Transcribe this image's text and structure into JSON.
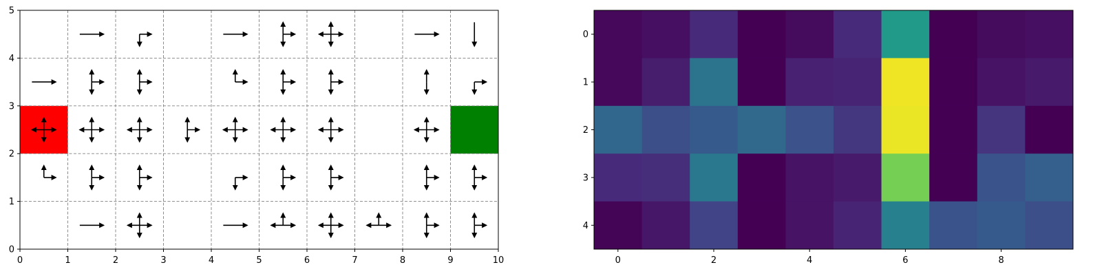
{
  "chart_data": [
    {
      "type": "quiver-grid",
      "xlim": [
        0,
        10
      ],
      "ylim": [
        0,
        5
      ],
      "x_ticks": [
        "0",
        "1",
        "2",
        "3",
        "4",
        "5",
        "6",
        "7",
        "8",
        "9",
        "10"
      ],
      "y_ticks": [
        "0",
        "1",
        "2",
        "3",
        "4",
        "5"
      ],
      "grid": "dashed",
      "highlighted_cells": [
        {
          "col": 0,
          "row": 2,
          "color": "#ff0000"
        },
        {
          "col": 9,
          "row": 2,
          "color": "#008000"
        }
      ],
      "arrow_directions_per_cell": [
        {
          "col": 1,
          "row": 4,
          "dirs": [
            "right"
          ]
        },
        {
          "col": 2,
          "row": 4,
          "dirs": [
            "right",
            "down"
          ]
        },
        {
          "col": 4,
          "row": 4,
          "dirs": [
            "right"
          ]
        },
        {
          "col": 5,
          "row": 4,
          "dirs": [
            "right",
            "up",
            "down"
          ]
        },
        {
          "col": 6,
          "row": 4,
          "dirs": [
            "right",
            "left",
            "up",
            "down"
          ]
        },
        {
          "col": 8,
          "row": 4,
          "dirs": [
            "right"
          ]
        },
        {
          "col": 9,
          "row": 4,
          "dirs": [
            "down"
          ]
        },
        {
          "col": 0,
          "row": 3,
          "dirs": [
            "right"
          ]
        },
        {
          "col": 1,
          "row": 3,
          "dirs": [
            "right",
            "up",
            "down"
          ]
        },
        {
          "col": 2,
          "row": 3,
          "dirs": [
            "right",
            "up",
            "down"
          ]
        },
        {
          "col": 4,
          "row": 3,
          "dirs": [
            "right",
            "up"
          ]
        },
        {
          "col": 5,
          "row": 3,
          "dirs": [
            "right",
            "up",
            "down"
          ]
        },
        {
          "col": 6,
          "row": 3,
          "dirs": [
            "right",
            "up",
            "down"
          ]
        },
        {
          "col": 8,
          "row": 3,
          "dirs": [
            "up",
            "down"
          ]
        },
        {
          "col": 9,
          "row": 3,
          "dirs": [
            "right",
            "down"
          ]
        },
        {
          "col": 0,
          "row": 2,
          "dirs": [
            "right",
            "left",
            "up",
            "down"
          ]
        },
        {
          "col": 1,
          "row": 2,
          "dirs": [
            "right",
            "left",
            "up",
            "down"
          ]
        },
        {
          "col": 2,
          "row": 2,
          "dirs": [
            "right",
            "left",
            "up",
            "down"
          ]
        },
        {
          "col": 3,
          "row": 2,
          "dirs": [
            "right",
            "up",
            "down"
          ]
        },
        {
          "col": 4,
          "row": 2,
          "dirs": [
            "right",
            "left",
            "up",
            "down"
          ]
        },
        {
          "col": 5,
          "row": 2,
          "dirs": [
            "right",
            "left",
            "up",
            "down"
          ]
        },
        {
          "col": 6,
          "row": 2,
          "dirs": [
            "right",
            "left",
            "up",
            "down"
          ]
        },
        {
          "col": 8,
          "row": 2,
          "dirs": [
            "right",
            "left",
            "up",
            "down"
          ]
        },
        {
          "col": 0,
          "row": 1,
          "dirs": [
            "right",
            "up"
          ]
        },
        {
          "col": 1,
          "row": 1,
          "dirs": [
            "right",
            "up",
            "down"
          ]
        },
        {
          "col": 2,
          "row": 1,
          "dirs": [
            "right",
            "up",
            "down"
          ]
        },
        {
          "col": 4,
          "row": 1,
          "dirs": [
            "right",
            "down"
          ]
        },
        {
          "col": 5,
          "row": 1,
          "dirs": [
            "right",
            "up",
            "down"
          ]
        },
        {
          "col": 6,
          "row": 1,
          "dirs": [
            "right",
            "up",
            "down"
          ]
        },
        {
          "col": 8,
          "row": 1,
          "dirs": [
            "right",
            "up",
            "down"
          ]
        },
        {
          "col": 9,
          "row": 1,
          "dirs": [
            "right",
            "up",
            "down"
          ]
        },
        {
          "col": 1,
          "row": 0,
          "dirs": [
            "right"
          ]
        },
        {
          "col": 2,
          "row": 0,
          "dirs": [
            "right",
            "left",
            "up",
            "down"
          ]
        },
        {
          "col": 4,
          "row": 0,
          "dirs": [
            "right"
          ]
        },
        {
          "col": 5,
          "row": 0,
          "dirs": [
            "right",
            "left",
            "up"
          ]
        },
        {
          "col": 6,
          "row": 0,
          "dirs": [
            "right",
            "left",
            "up",
            "down"
          ]
        },
        {
          "col": 7,
          "row": 0,
          "dirs": [
            "right",
            "left",
            "up"
          ]
        },
        {
          "col": 8,
          "row": 0,
          "dirs": [
            "right",
            "up",
            "down"
          ]
        },
        {
          "col": 9,
          "row": 0,
          "dirs": [
            "right",
            "up",
            "down"
          ]
        }
      ]
    },
    {
      "type": "heatmap",
      "colormap": "viridis",
      "x_ticks": [
        "0",
        "2",
        "4",
        "6",
        "8"
      ],
      "y_ticks": [
        "0",
        "1",
        "2",
        "3",
        "4"
      ],
      "values": [
        [
          0.02,
          0.04,
          0.12,
          0.0,
          0.03,
          0.12,
          0.54,
          0.0,
          0.03,
          0.04
        ],
        [
          0.02,
          0.08,
          0.38,
          0.0,
          0.09,
          0.1,
          0.98,
          0.0,
          0.05,
          0.07
        ],
        [
          0.33,
          0.24,
          0.28,
          0.34,
          0.25,
          0.16,
          0.97,
          0.0,
          0.15,
          0.0
        ],
        [
          0.12,
          0.13,
          0.4,
          0.0,
          0.05,
          0.07,
          0.79,
          0.0,
          0.26,
          0.3
        ],
        [
          0.01,
          0.06,
          0.2,
          0.0,
          0.05,
          0.1,
          0.43,
          0.26,
          0.28,
          0.24
        ]
      ]
    }
  ]
}
